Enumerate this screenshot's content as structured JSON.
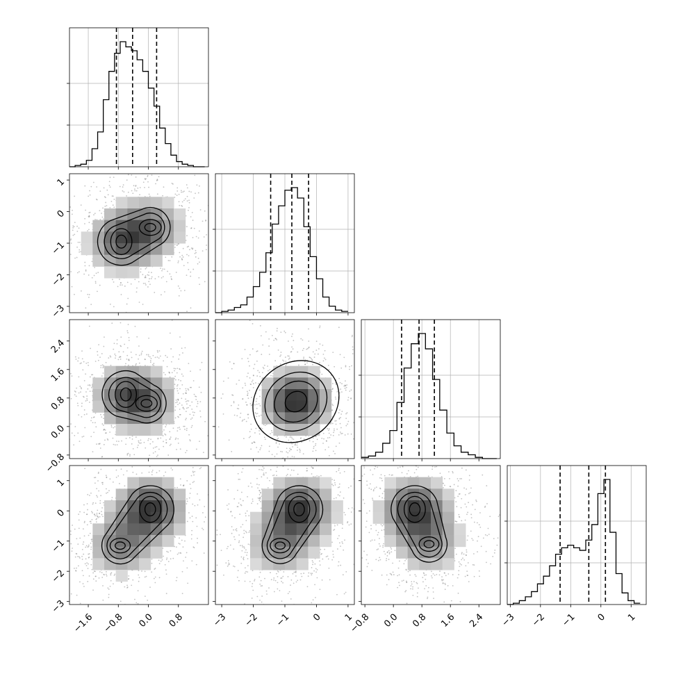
{
  "chart_data": {
    "type": "corner",
    "n_params": 4,
    "params": [
      {
        "index": 0,
        "name": "",
        "range": [
          -2.1,
          1.6
        ],
        "ticks": [
          -1.6,
          -0.8,
          0.0,
          0.8
        ],
        "tick_labels": [
          "−1.6",
          "−0.8",
          "0.0",
          "0.8"
        ],
        "quantiles": [
          -0.85,
          -0.42,
          0.22
        ]
      },
      {
        "index": 1,
        "name": "",
        "range": [
          -3.2,
          1.2
        ],
        "ticks": [
          -3,
          -2,
          -1,
          0,
          1
        ],
        "tick_labels": [
          "−3",
          "−2",
          "−1",
          "0",
          "1"
        ],
        "quantiles": [
          -1.45,
          -0.78,
          -0.25
        ]
      },
      {
        "index": 2,
        "name": "",
        "range": [
          -0.9,
          3.0
        ],
        "ticks": [
          -0.8,
          0.0,
          0.8,
          1.6,
          2.4
        ],
        "tick_labels": [
          "−0.8",
          "0.0",
          "0.8",
          "1.6",
          "2.4"
        ],
        "quantiles": [
          0.23,
          0.72,
          1.15
        ]
      },
      {
        "index": 3,
        "name": "",
        "range": [
          -3.1,
          1.5
        ],
        "ticks": [
          -3,
          -2,
          -1,
          0,
          1
        ],
        "tick_labels": [
          "−3",
          "−2",
          "−1",
          "0",
          "1"
        ],
        "quantiles": [
          -1.35,
          -0.4,
          0.15
        ]
      }
    ],
    "histograms": [
      {
        "param": 0,
        "bin_edges": [
          -2.1,
          -1.95,
          -1.8,
          -1.65,
          -1.5,
          -1.35,
          -1.2,
          -1.05,
          -0.9,
          -0.75,
          -0.6,
          -0.45,
          -0.3,
          -0.15,
          0.0,
          0.15,
          0.3,
          0.45,
          0.6,
          0.75,
          0.9,
          1.05,
          1.2,
          1.35,
          1.5
        ],
        "counts": [
          0,
          1,
          2,
          5,
          14,
          27,
          52,
          74,
          88,
          97,
          93,
          90,
          83,
          74,
          61,
          47,
          30,
          18,
          9,
          4,
          2,
          1,
          0,
          0
        ]
      },
      {
        "param": 1,
        "bin_edges": [
          -3.2,
          -3.0,
          -2.8,
          -2.6,
          -2.4,
          -2.2,
          -2.0,
          -1.8,
          -1.6,
          -1.4,
          -1.2,
          -1.0,
          -0.8,
          -0.6,
          -0.4,
          -0.2,
          0.0,
          0.2,
          0.4,
          0.6,
          0.8,
          1.0
        ],
        "counts": [
          0,
          1,
          2,
          4,
          6,
          12,
          20,
          31,
          46,
          68,
          82,
          94,
          96,
          88,
          66,
          43,
          26,
          12,
          5,
          2,
          1
        ]
      },
      {
        "param": 2,
        "bin_edges": [
          -0.9,
          -0.7,
          -0.5,
          -0.3,
          -0.1,
          0.1,
          0.3,
          0.5,
          0.7,
          0.9,
          1.1,
          1.3,
          1.5,
          1.7,
          1.9,
          2.1,
          2.3,
          2.5,
          2.7,
          2.9
        ],
        "counts": [
          1,
          2,
          5,
          12,
          22,
          44,
          71,
          90,
          98,
          86,
          62,
          38,
          20,
          10,
          5,
          3,
          1,
          0,
          0
        ]
      },
      {
        "param": 3,
        "bin_edges": [
          -3.1,
          -2.9,
          -2.7,
          -2.5,
          -2.3,
          -2.1,
          -1.9,
          -1.7,
          -1.5,
          -1.3,
          -1.1,
          -0.9,
          -0.7,
          -0.5,
          -0.3,
          -0.1,
          0.1,
          0.3,
          0.5,
          0.7,
          0.9,
          1.1,
          1.3
        ],
        "counts": [
          0,
          1,
          3,
          6,
          10,
          16,
          22,
          30,
          39,
          44,
          46,
          44,
          42,
          50,
          62,
          86,
          97,
          56,
          24,
          9,
          3,
          1
        ]
      }
    ],
    "pairs": [
      {
        "x_param": 0,
        "y_param": 1,
        "modes": [
          {
            "x": -0.72,
            "y": -0.95,
            "weight": 1.0
          },
          {
            "x": 0.05,
            "y": -0.5,
            "weight": 0.85
          }
        ]
      },
      {
        "x_param": 0,
        "y_param": 2,
        "modes": [
          {
            "x": -0.6,
            "y": 0.9,
            "weight": 1.0
          },
          {
            "x": -0.05,
            "y": 0.65,
            "weight": 0.8
          }
        ]
      },
      {
        "x_param": 1,
        "y_param": 2,
        "modes": [
          {
            "x": -0.65,
            "y": 0.7,
            "weight": 1.0
          }
        ]
      },
      {
        "x_param": 0,
        "y_param": 3,
        "modes": [
          {
            "x": 0.05,
            "y": 0.05,
            "weight": 1.0
          },
          {
            "x": -0.75,
            "y": -1.15,
            "weight": 0.6
          }
        ]
      },
      {
        "x_param": 1,
        "y_param": 3,
        "modes": [
          {
            "x": -0.55,
            "y": 0.05,
            "weight": 1.0
          },
          {
            "x": -1.15,
            "y": -1.15,
            "weight": 0.55
          }
        ]
      },
      {
        "x_param": 2,
        "y_param": 3,
        "modes": [
          {
            "x": 0.6,
            "y": 0.05,
            "weight": 1.0
          },
          {
            "x": 1.0,
            "y": -1.1,
            "weight": 0.55
          }
        ]
      }
    ],
    "contour_levels": 4,
    "grid": true,
    "legend": "none",
    "title": ""
  },
  "colors": {
    "line": "#000000",
    "scatter": "#777777",
    "grid": "#b0b0b0",
    "frame": "#000000"
  }
}
